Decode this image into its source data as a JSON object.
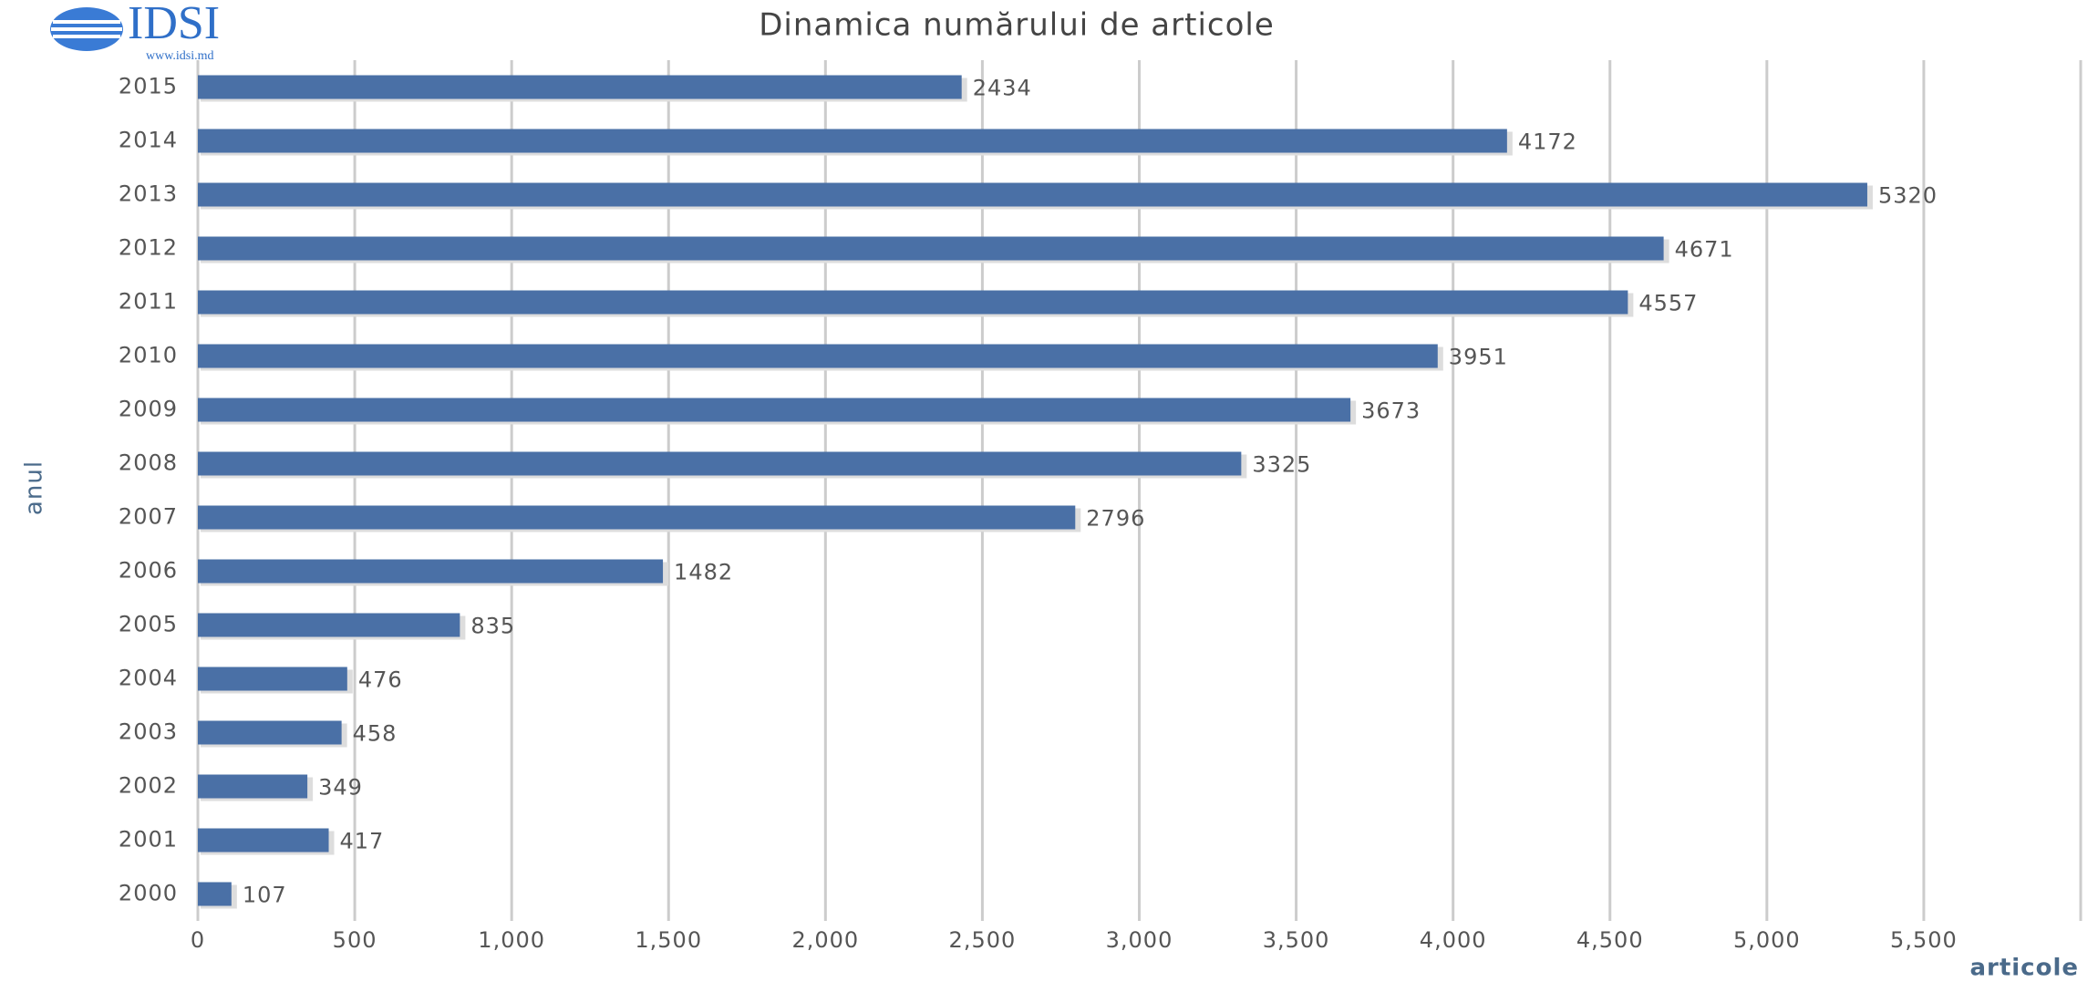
{
  "logo": {
    "name": "IDSI",
    "url": "www.idsi.md"
  },
  "chart_data": {
    "type": "bar",
    "orientation": "horizontal",
    "title": "Dinamica numărului de articole",
    "x_label": "articole",
    "y_label": "anul",
    "categories": [
      "2015",
      "2014",
      "2013",
      "2012",
      "2011",
      "2010",
      "2009",
      "2008",
      "2007",
      "2006",
      "2005",
      "2004",
      "2003",
      "2002",
      "2001",
      "2000"
    ],
    "values": [
      2434,
      4172,
      5320,
      4671,
      4557,
      3951,
      3673,
      3325,
      2796,
      1482,
      835,
      476,
      458,
      349,
      417,
      107
    ],
    "color": "#4a70a6",
    "xlim": [
      0,
      6000
    ],
    "xticks": [
      0,
      500,
      {
        "value": 1000,
        "label": "1,000"
      },
      {
        "value": 1500,
        "label": "1,500"
      },
      {
        "value": 2000,
        "label": "2,000"
      },
      {
        "value": 2500,
        "label": "2,500"
      },
      {
        "value": 3000,
        "label": "3,000"
      },
      {
        "value": 3500,
        "label": "3,500"
      },
      {
        "value": 4000,
        "label": "4,000"
      },
      {
        "value": 4500,
        "label": "4,500"
      },
      {
        "value": 5000,
        "label": "5,000"
      },
      {
        "value": 5500,
        "label": "5,500"
      }
    ],
    "grid": true
  }
}
